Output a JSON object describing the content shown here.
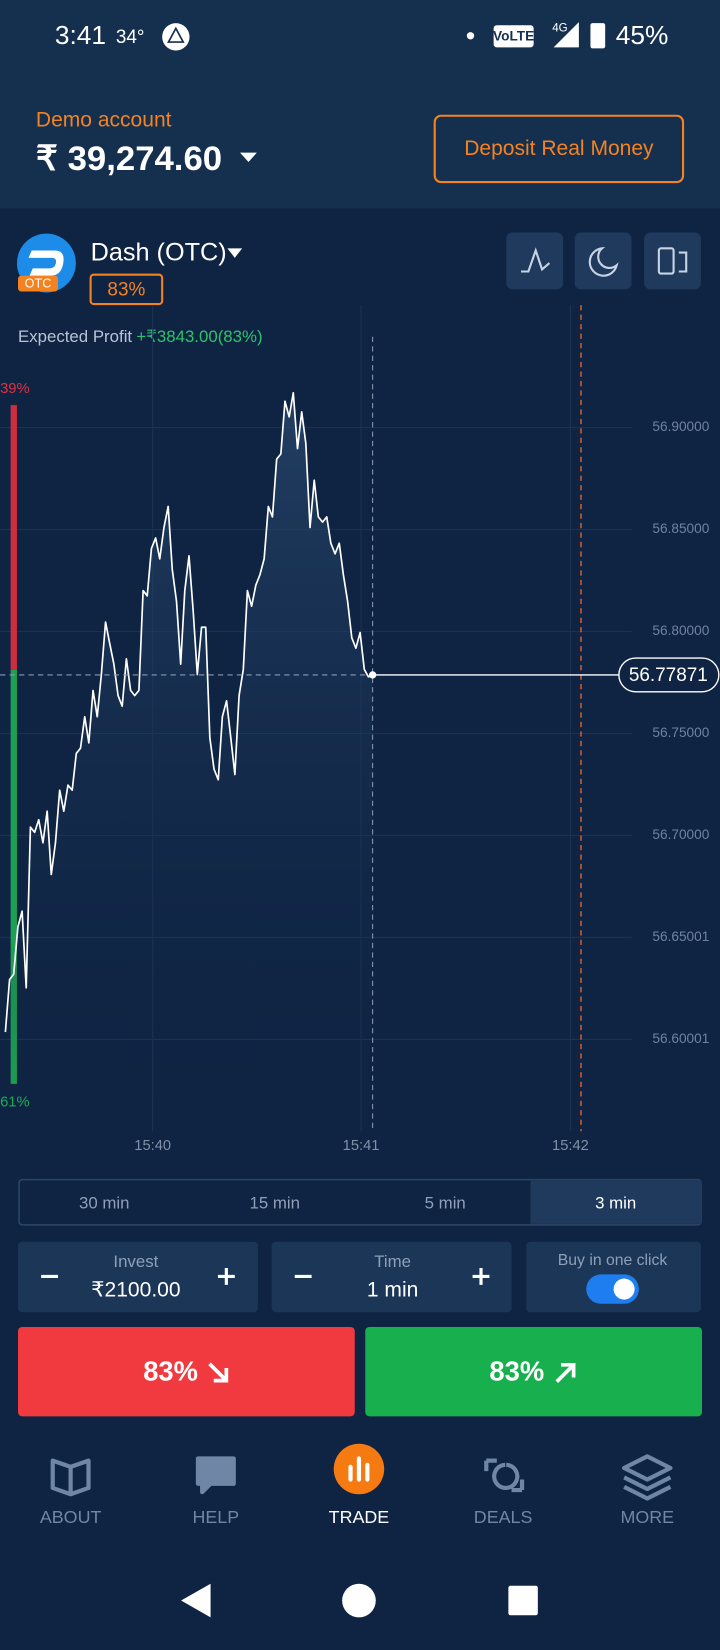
{
  "status_bar": {
    "time": "3:41",
    "temperature": "34°",
    "network": "VoLTE",
    "signal": "4G",
    "battery": "45%"
  },
  "account": {
    "label": "Demo account",
    "balance": "₹ 39,274.60",
    "deposit_button": "Deposit Real Money"
  },
  "asset": {
    "name": "Dash (OTC)",
    "badge": "OTC",
    "payout": "83%"
  },
  "expected_profit": {
    "label": "Expected Profit",
    "value": "+₹3843.00(83%)"
  },
  "sentiment": {
    "values": [
      39,
      61
    ],
    "value_labels": [
      "39%",
      "61%"
    ],
    "colors": [
      "#e0313f",
      "#1fae55"
    ]
  },
  "chart": {
    "type": "line",
    "color": "#ffffff",
    "grid": true,
    "values": [
      56.6036,
      56.6294,
      56.632,
      56.6552,
      56.6629,
      56.6253,
      56.7041,
      56.7015,
      56.7077,
      56.6964,
      56.7119,
      56.6809,
      56.6964,
      56.7222,
      56.7119,
      56.7247,
      56.7222,
      56.7402,
      56.7428,
      56.7582,
      56.7454,
      56.7711,
      56.7582,
      56.7789,
      56.8046,
      56.7943,
      56.784,
      56.7686,
      56.7634,
      56.7866,
      56.7711,
      56.7686,
      56.7711,
      56.8201,
      56.8175,
      56.8407,
      56.8459,
      56.8356,
      56.851,
      56.8613,
      56.8304,
      56.8149,
      56.784,
      56.8201,
      56.8371,
      56.8098,
      56.7789,
      56.8021,
      56.8021,
      56.7479,
      56.7325,
      56.7273,
      56.7582,
      56.766,
      56.7479,
      56.7299,
      56.7686,
      56.7814,
      56.8201,
      56.8124,
      56.8227,
      56.8278,
      56.8356,
      56.8613,
      56.8562,
      56.8845,
      56.8871,
      56.9129,
      56.9052,
      56.917,
      56.8897,
      56.9077,
      56.8923,
      56.851,
      56.8742,
      56.8562,
      56.8536,
      56.8562,
      56.8433,
      56.8381,
      56.8433,
      56.8278,
      56.8149,
      56.7969,
      56.7918,
      56.7995,
      56.7814,
      56.7778,
      56.77871
    ],
    "ylim": [
      56.555,
      56.96
    ],
    "yticks": [
      {
        "value": 56.9,
        "label": "56.90000"
      },
      {
        "value": 56.85,
        "label": "56.85000"
      },
      {
        "value": 56.8,
        "label": "56.80000"
      },
      {
        "value": 56.75,
        "label": "56.75000"
      },
      {
        "value": 56.7,
        "label": "56.70000"
      },
      56.65001,
      56.60001
    ],
    "x_labels": [
      "15:40",
      "15:41",
      "15:42"
    ],
    "current_price": 56.77871
  },
  "timeframes": {
    "options": [
      "30 min",
      "15 min",
      "5 min",
      "3 min"
    ],
    "selected": 3
  },
  "invest": {
    "label": "Invest",
    "value": "₹2100.00"
  },
  "time": {
    "label": "Time",
    "value": "1 min"
  },
  "buy_in_one_click": {
    "label": "Buy in one click",
    "enabled": true
  },
  "buttons": {
    "sell": "83%",
    "buy": "83%"
  },
  "nav": {
    "items": [
      "ABOUT",
      "HELP",
      "TRADE",
      "DEALS",
      "MORE"
    ],
    "active": 2
  }
}
